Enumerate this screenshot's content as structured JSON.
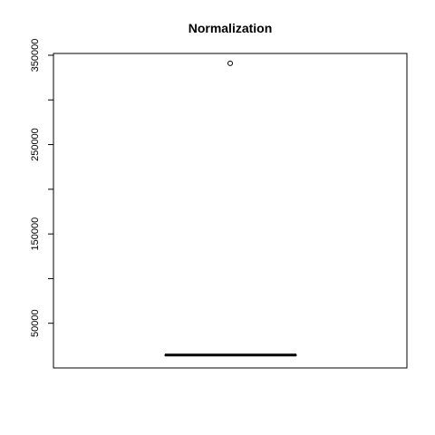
{
  "chart_data": {
    "type": "boxplot",
    "title": "Normalization",
    "xlabel": "",
    "ylabel": "",
    "ylim": [
      0,
      352000
    ],
    "y_ticks": [
      0,
      50000,
      100000,
      150000,
      200000,
      250000,
      300000,
      350000
    ],
    "y_tick_labels": [
      "50000",
      "150000",
      "250000",
      "350000"
    ],
    "y_tick_labels_at": [
      50000,
      150000,
      250000,
      350000
    ],
    "box": {
      "min": 14500,
      "q1": 14500,
      "median": 14500,
      "q3": 14500,
      "max": 14500
    },
    "outliers": [
      341000
    ],
    "grid": false,
    "legend": "none"
  }
}
